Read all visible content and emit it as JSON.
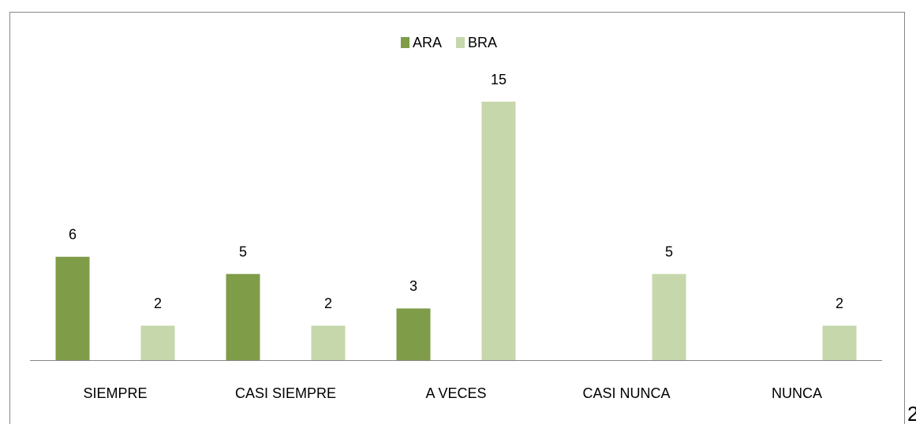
{
  "chart_data": {
    "type": "bar",
    "categories": [
      "SIEMPRE",
      "CASI SIEMPRE",
      "A VECES",
      "CASI NUNCA",
      "NUNCA"
    ],
    "series": [
      {
        "name": "ARA",
        "color": "#7f9c48",
        "values": [
          6,
          5,
          3,
          null,
          null
        ]
      },
      {
        "name": "BRA",
        "color": "#c6d7ac",
        "values": [
          2,
          2,
          15,
          5,
          2
        ]
      }
    ],
    "legend": "top"
  },
  "page_number": "2"
}
